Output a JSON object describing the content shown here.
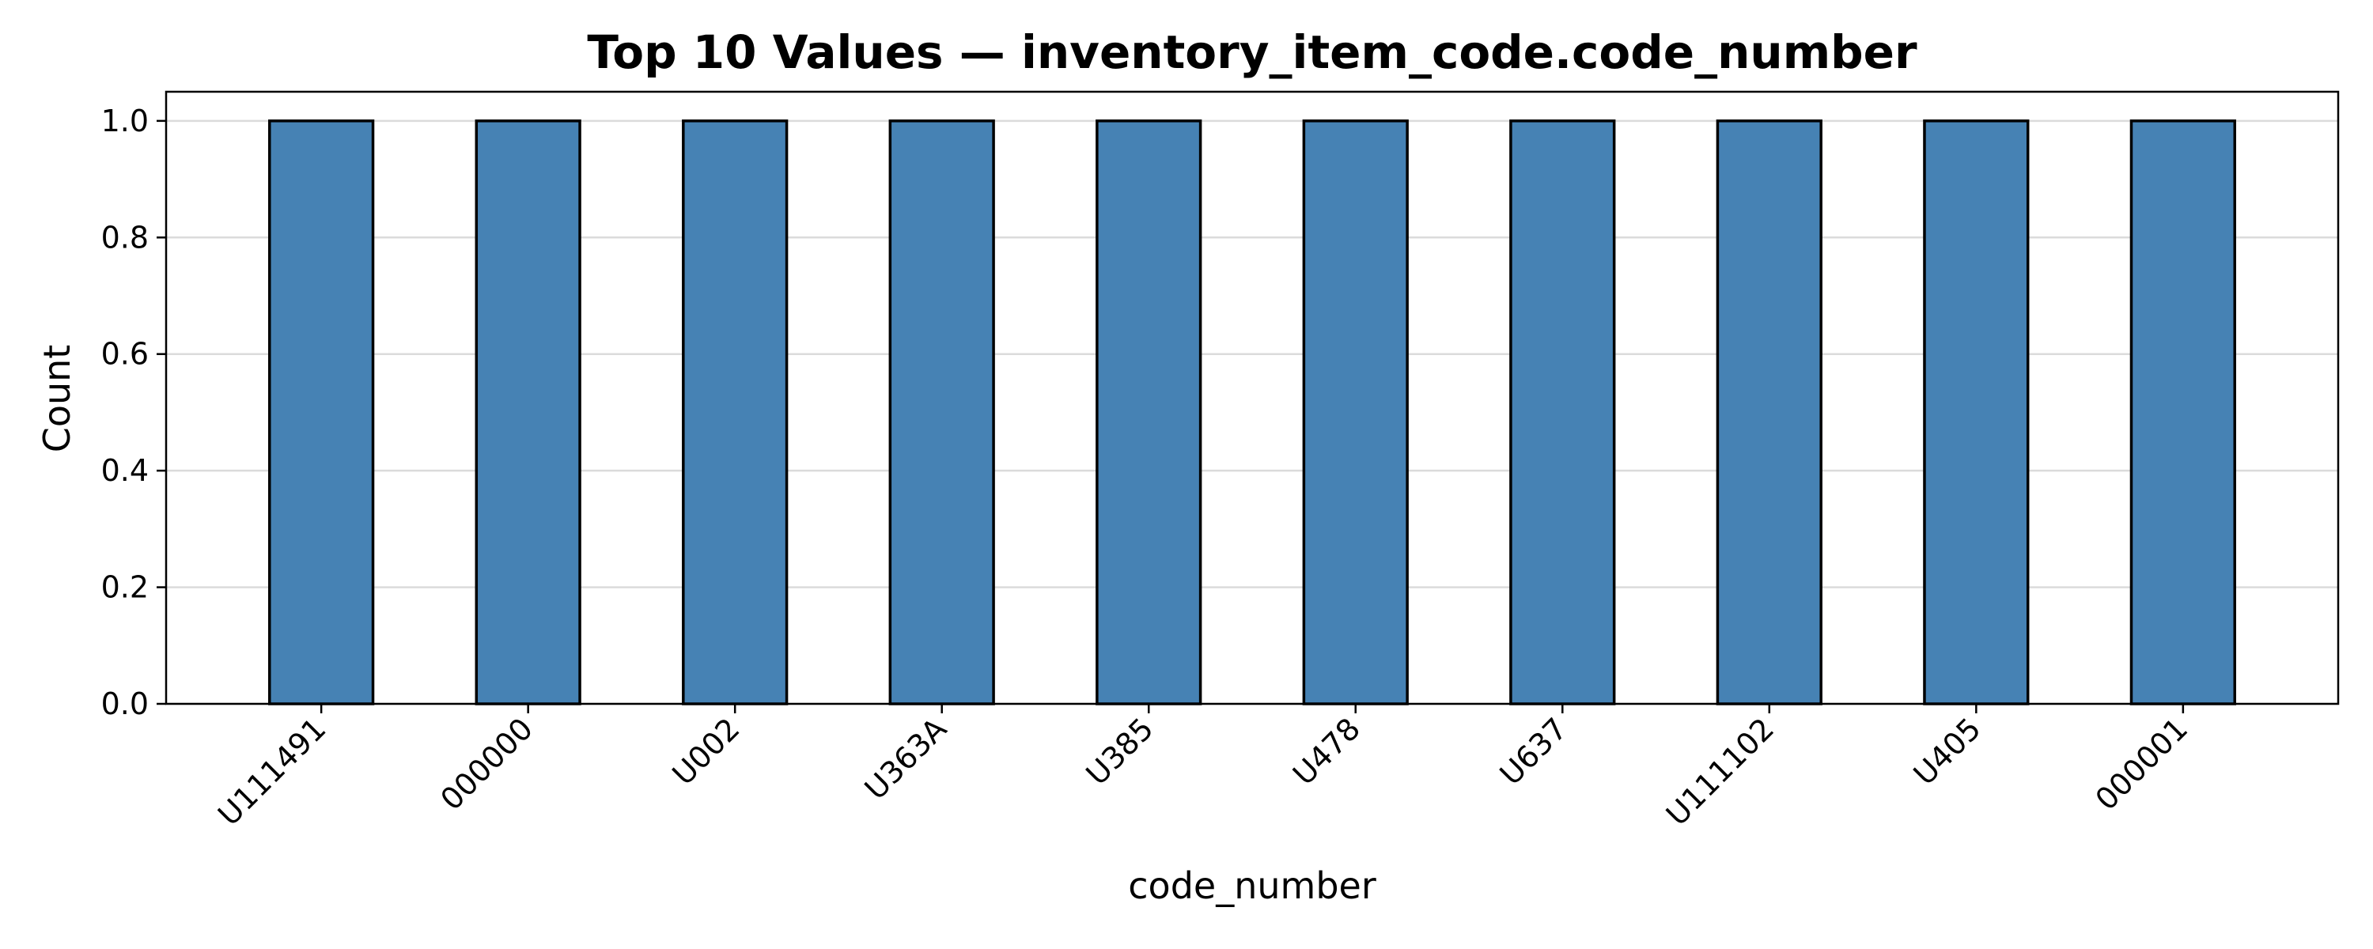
{
  "chart_data": {
    "type": "bar",
    "title": "Top 10 Values — inventory_item_code.code_number",
    "xlabel": "code_number",
    "ylabel": "Count",
    "categories": [
      "U111491",
      "000000",
      "U002",
      "U363A",
      "U385",
      "U478",
      "U637",
      "U111102",
      "U405",
      "000001"
    ],
    "values": [
      1,
      1,
      1,
      1,
      1,
      1,
      1,
      1,
      1,
      1
    ],
    "ylim": [
      0,
      1.05
    ],
    "yticks": [
      "0.0",
      "0.2",
      "0.4",
      "0.6",
      "0.8",
      "1.0"
    ],
    "grid": "horizontal",
    "bar_color": "#4682b4",
    "edge_color": "#000000"
  }
}
